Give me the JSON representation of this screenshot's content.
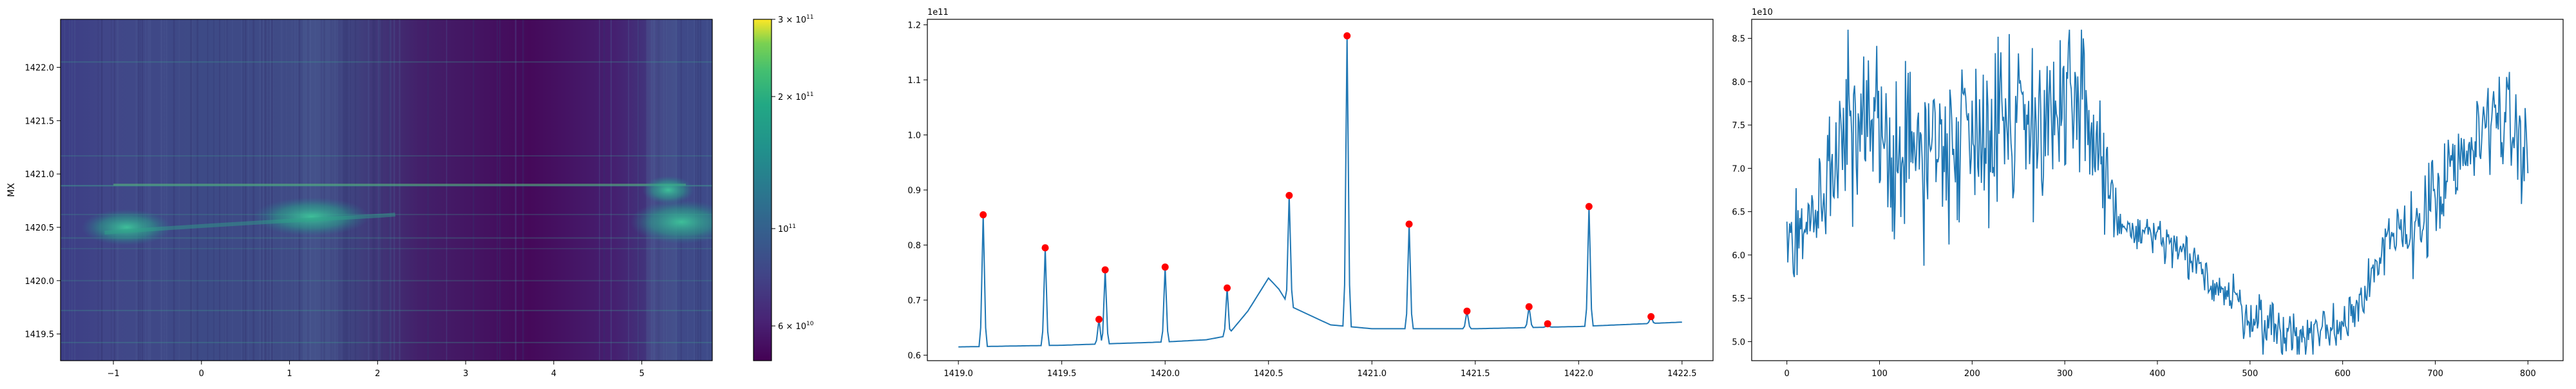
{
  "chart_data": [
    {
      "type": "heatmap",
      "ylabel": "MX",
      "xlim": [
        -1.6,
        5.8
      ],
      "ylim": [
        1419.25,
        1422.45
      ],
      "x_ticks": [
        "−1",
        "0",
        "1",
        "2",
        "3",
        "4",
        "5"
      ],
      "x_tick_values": [
        -1,
        0,
        1,
        2,
        3,
        4,
        5
      ],
      "y_ticks": [
        "1419.5",
        "1420.0",
        "1420.5",
        "1421.0",
        "1421.5",
        "1422.0"
      ],
      "y_tick_values": [
        1419.5,
        1420.0,
        1420.5,
        1421.0,
        1421.5,
        1422.0
      ],
      "colormap": "viridis",
      "colorbar": {
        "scale": "log",
        "range": [
          50000000000,
          300000000000
        ],
        "tick_values": [
          60000000000,
          100000000000,
          200000000000,
          300000000000
        ],
        "tick_base": [
          "6 × 10",
          "10",
          "2 × 10",
          "3 × 10"
        ],
        "tick_exp": [
          "10",
          "11",
          "11",
          "11"
        ]
      }
    },
    {
      "type": "line",
      "offset_label": "1e11",
      "xlim": [
        1418.85,
        1422.65
      ],
      "ylim": [
        0.59,
        1.21
      ],
      "x_ticks": [
        "1419.0",
        "1419.5",
        "1420.0",
        "1420.5",
        "1421.0",
        "1421.5",
        "1422.0",
        "1422.5"
      ],
      "x_tick_values": [
        1419.0,
        1419.5,
        1420.0,
        1420.5,
        1421.0,
        1421.5,
        1422.0,
        1422.5
      ],
      "y_ticks": [
        "0.6",
        "0.7",
        "0.8",
        "0.9",
        "1.0",
        "1.1",
        "1.2"
      ],
      "y_tick_values": [
        0.6,
        0.7,
        0.8,
        0.9,
        1.0,
        1.1,
        1.2
      ],
      "line_color": "#1f77b4",
      "marker_color": "#ff0000",
      "baseline": [
        [
          1419.0,
          0.615
        ],
        [
          1419.5,
          0.618
        ],
        [
          1420.0,
          0.624
        ],
        [
          1420.2,
          0.628
        ],
        [
          1420.3,
          0.635
        ],
        [
          1420.4,
          0.68
        ],
        [
          1420.5,
          0.74
        ],
        [
          1420.55,
          0.72
        ],
        [
          1420.6,
          0.69
        ],
        [
          1420.8,
          0.655
        ],
        [
          1421.0,
          0.648
        ],
        [
          1421.5,
          0.648
        ],
        [
          1422.0,
          0.652
        ],
        [
          1422.5,
          0.66
        ]
      ],
      "peaks": [
        {
          "x": 1419.12,
          "y": 0.855
        },
        {
          "x": 1419.42,
          "y": 0.795
        },
        {
          "x": 1419.68,
          "y": 0.665
        },
        {
          "x": 1419.71,
          "y": 0.755
        },
        {
          "x": 1420.0,
          "y": 0.76
        },
        {
          "x": 1420.3,
          "y": 0.722
        },
        {
          "x": 1420.6,
          "y": 0.89
        },
        {
          "x": 1420.88,
          "y": 1.18
        },
        {
          "x": 1421.18,
          "y": 0.838
        },
        {
          "x": 1421.46,
          "y": 0.68
        },
        {
          "x": 1421.76,
          "y": 0.688
        },
        {
          "x": 1421.85,
          "y": 0.657
        },
        {
          "x": 1422.05,
          "y": 0.87
        },
        {
          "x": 1422.35,
          "y": 0.67
        }
      ]
    },
    {
      "type": "line",
      "offset_label": "1e10",
      "xlim": [
        -38,
        838
      ],
      "ylim": [
        4.78,
        8.72
      ],
      "x_ticks": [
        "0",
        "100",
        "200",
        "300",
        "400",
        "500",
        "600",
        "700",
        "800"
      ],
      "x_tick_values": [
        0,
        100,
        200,
        300,
        400,
        500,
        600,
        700,
        800
      ],
      "y_ticks": [
        "5.0",
        "5.5",
        "6.0",
        "6.5",
        "7.0",
        "7.5",
        "8.0",
        "8.5"
      ],
      "y_tick_values": [
        5.0,
        5.5,
        6.0,
        6.5,
        7.0,
        7.5,
        8.0,
        8.5
      ],
      "line_color": "#1f77b4",
      "trend": [
        [
          0,
          6.2
        ],
        [
          30,
          6.4
        ],
        [
          60,
          7.4
        ],
        [
          100,
          7.3
        ],
        [
          150,
          7.2
        ],
        [
          200,
          7.5
        ],
        [
          250,
          7.6
        ],
        [
          300,
          7.6
        ],
        [
          330,
          7.5
        ],
        [
          360,
          6.3
        ],
        [
          400,
          6.2
        ],
        [
          450,
          5.8
        ],
        [
          500,
          5.3
        ],
        [
          550,
          5.05
        ],
        [
          600,
          5.2
        ],
        [
          650,
          6.1
        ],
        [
          700,
          6.6
        ],
        [
          740,
          7.2
        ],
        [
          760,
          7.7
        ],
        [
          780,
          7.5
        ],
        [
          800,
          7.1
        ]
      ],
      "noise_amp": [
        [
          0,
          0.4
        ],
        [
          60,
          1.1
        ],
        [
          330,
          1.1
        ],
        [
          360,
          0.25
        ],
        [
          500,
          0.35
        ],
        [
          640,
          0.35
        ],
        [
          700,
          0.7
        ],
        [
          800,
          0.6
        ]
      ]
    }
  ]
}
